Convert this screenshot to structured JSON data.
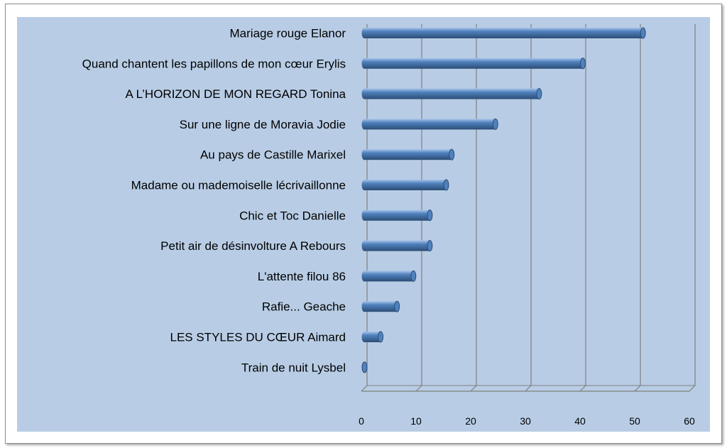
{
  "chart_data": {
    "type": "bar",
    "orientation": "horizontal",
    "style": "3d-cylinder",
    "categories": [
      "Mariage rouge Elanor",
      "Quand chantent les papillons de mon cœur Erylis",
      "A  L’HORIZON  DE  MON  REGARD Tonina",
      "Sur une ligne de Moravia Jodie",
      "Au pays de Castille Marixel",
      "Madame ou mademoiselle  lécrivaillonne",
      "Chic et Toc Danielle",
      "Petit air de désinvolture  A Rebours",
      "L'attente filou 86",
      "Rafie... Geache",
      "LES STYLES DU CŒUR  Aimard",
      "Train de nuit Lysbel"
    ],
    "values": [
      51,
      40,
      32,
      24,
      16,
      15,
      12,
      12,
      9,
      6,
      3,
      0
    ],
    "xlim": [
      0,
      60
    ],
    "xticks": [
      0,
      10,
      20,
      30,
      40,
      50,
      60
    ],
    "grid": true,
    "legend": "none",
    "colors": {
      "bar": "#4f81bd",
      "bar_light": "#a9c4ea",
      "bar_dark": "#2c4d75",
      "plot_bg": "#b8cde5",
      "grid": "#7f7f7f"
    }
  }
}
